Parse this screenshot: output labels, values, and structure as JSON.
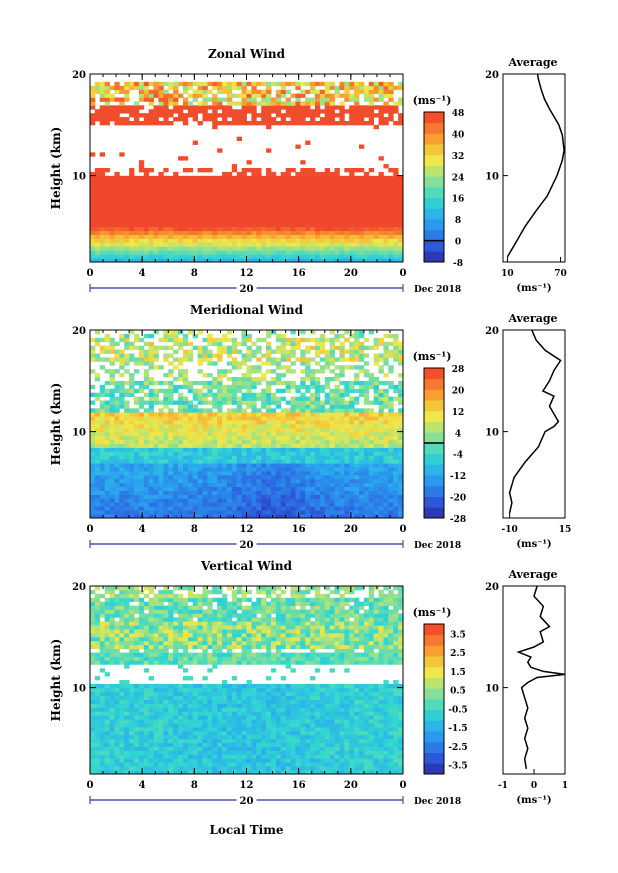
{
  "chart_data": [
    {
      "type": "heatmap",
      "title": "Zonal Wind",
      "xlabel": "",
      "ylabel": "Height (km)",
      "x_ticks": [
        "0",
        "4",
        "8",
        "12",
        "16",
        "20",
        "0"
      ],
      "y_ticks": [
        "20",
        "10"
      ],
      "xlim": [
        0,
        24
      ],
      "ylim": [
        1.5,
        20
      ],
      "date_marker": "20",
      "date_label": "Dec 2018",
      "colorbar": {
        "unit": "(ms⁻¹)",
        "ticks": [
          "48",
          "40",
          "32",
          "24",
          "16",
          "8",
          "0",
          "-8"
        ],
        "range": [
          -8,
          48
        ],
        "zero_line": true
      },
      "profile": {
        "title": "Average",
        "xlabel": "(ms⁻¹)",
        "x_ticks": [
          "10",
          "70"
        ],
        "xlim": [
          5,
          75
        ],
        "y_ticks": [
          "20",
          "10"
        ],
        "points": [
          [
            10,
            2.0
          ],
          [
            20,
            3.5
          ],
          [
            30,
            5.0
          ],
          [
            42,
            6.5
          ],
          [
            55,
            8.0
          ],
          [
            66,
            10.0
          ],
          [
            72,
            11.5
          ],
          [
            74,
            12.5
          ],
          [
            72,
            14.0
          ],
          [
            68,
            15.0
          ],
          [
            58,
            16.5
          ],
          [
            52,
            17.5
          ],
          [
            48,
            18.5
          ],
          [
            45,
            19.5
          ],
          [
            44,
            20.0
          ]
        ]
      }
    },
    {
      "type": "heatmap",
      "title": "Meridional Wind",
      "xlabel": "",
      "ylabel": "Height (km)",
      "x_ticks": [
        "0",
        "4",
        "8",
        "12",
        "16",
        "20",
        "0"
      ],
      "y_ticks": [
        "20",
        "10"
      ],
      "xlim": [
        0,
        24
      ],
      "ylim": [
        1.5,
        20
      ],
      "date_marker": "20",
      "date_label": "Dec 2018",
      "colorbar": {
        "unit": "(ms⁻¹)",
        "ticks": [
          "28",
          "20",
          "12",
          "4",
          "-4",
          "-12",
          "-20",
          "-28"
        ],
        "range": [
          -28,
          28
        ],
        "zero_line": true
      },
      "profile": {
        "title": "Average",
        "xlabel": "(ms⁻¹)",
        "x_ticks": [
          "-10",
          "15"
        ],
        "xlim": [
          -13,
          15
        ],
        "y_ticks": [
          "20",
          "10"
        ],
        "points": [
          [
            -10,
            2.0
          ],
          [
            -9,
            3.0
          ],
          [
            -10,
            4.0
          ],
          [
            -8,
            5.5
          ],
          [
            -3,
            7.0
          ],
          [
            3,
            8.5
          ],
          [
            6,
            10.0
          ],
          [
            10,
            10.5
          ],
          [
            12,
            11.0
          ],
          [
            8,
            12.5
          ],
          [
            10,
            13.5
          ],
          [
            5,
            14.0
          ],
          [
            8,
            15.0
          ],
          [
            10,
            16.0
          ],
          [
            13,
            17.0
          ],
          [
            6,
            18.0
          ],
          [
            2,
            19.0
          ],
          [
            0,
            20.0
          ]
        ]
      }
    },
    {
      "type": "heatmap",
      "title": "Vertical Wind",
      "xlabel": "Local Time",
      "ylabel": "Height (km)",
      "x_ticks": [
        "0",
        "4",
        "8",
        "12",
        "16",
        "20",
        "0"
      ],
      "y_ticks": [
        "20",
        "10"
      ],
      "xlim": [
        0,
        24
      ],
      "ylim": [
        1.5,
        20
      ],
      "date_marker": "20",
      "date_label": "Dec 2018",
      "colorbar": {
        "unit": "(ms⁻¹)",
        "ticks": [
          "3.5",
          "2.5",
          "1.5",
          "0.5",
          "-0.5",
          "-1.5",
          "-2.5",
          "-3.5"
        ],
        "range": [
          -4,
          4
        ],
        "zero_line": false
      },
      "profile": {
        "title": "Average",
        "xlabel": "(ms⁻¹)",
        "x_ticks": [
          "-1",
          "0",
          "1"
        ],
        "xlim": [
          -1,
          1
        ],
        "y_ticks": [
          "20",
          "10"
        ],
        "points": [
          [
            -0.25,
            2.0
          ],
          [
            -0.3,
            3.0
          ],
          [
            -0.2,
            4.0
          ],
          [
            -0.3,
            5.0
          ],
          [
            -0.2,
            6.0
          ],
          [
            -0.3,
            7.0
          ],
          [
            -0.2,
            8.0
          ],
          [
            -0.3,
            9.0
          ],
          [
            -0.4,
            10.0
          ],
          [
            -0.2,
            10.5
          ],
          [
            0.1,
            11.0
          ],
          [
            1.0,
            11.3
          ],
          [
            0.3,
            11.6
          ],
          [
            -0.1,
            12.0
          ],
          [
            -0.2,
            12.5
          ],
          [
            -0.1,
            13.0
          ],
          [
            -0.5,
            13.5
          ],
          [
            0.0,
            14.0
          ],
          [
            0.3,
            14.5
          ],
          [
            0.2,
            15.5
          ],
          [
            0.5,
            16.0
          ],
          [
            0.2,
            17.0
          ],
          [
            0.3,
            18.0
          ],
          [
            0.0,
            19.0
          ],
          [
            0.1,
            20.0
          ]
        ]
      }
    }
  ]
}
